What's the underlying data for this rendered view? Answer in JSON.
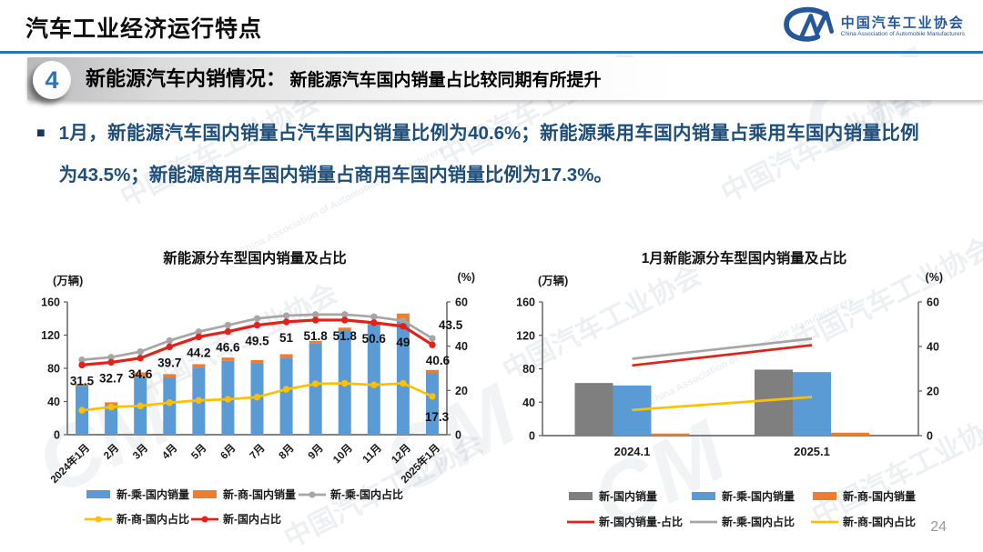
{
  "header": {
    "title": "汽车工业经济运行特点",
    "logo": {
      "mark": "CM",
      "org_cn": "中国汽车工业协会",
      "org_en": "China Association of Automobile Manufacturers"
    }
  },
  "section": {
    "number": "4",
    "heading": "新能源汽车内销情况：",
    "subheading": "新能源汽车国内销量占比较同期有所提升"
  },
  "bullet": {
    "marker": "■",
    "text": "1月，新能源汽车国内销量占汽车国内销量比例为40.6%；新能源乘用车国内销量占乘用车国内销量比例为43.5%；新能源商用车国内销量占商用车国内销量比例为17.3%。"
  },
  "page_number": "24",
  "watermark": {
    "text": "中国汽车工业协会",
    "logo": "CM",
    "text_en": "China Association of Automobile Manufacturers"
  },
  "colors": {
    "accent_blue": "#2E74B5",
    "navy_text": "#1F4E79",
    "logo_blue": "#26579A",
    "axis": "#595959"
  },
  "chart_data": [
    {
      "type": "bar+line combo",
      "title": "新能源分车型国内销量及占比",
      "stacked": true,
      "left_axis": {
        "unit": "(万辆)",
        "ticks": [
          0,
          40,
          80,
          120,
          160
        ],
        "max": 160
      },
      "right_axis": {
        "unit": "(%)",
        "ticks": [
          0,
          20,
          40,
          60
        ],
        "max": 60
      },
      "categories": [
        "2024年1月",
        "2月",
        "3月",
        "4月",
        "5月",
        "6月",
        "7月",
        "8月",
        "9月",
        "10月",
        "11月",
        "12月",
        "2025年1月"
      ],
      "bar_series": [
        {
          "name": "新-乘-国内销量",
          "color": "#5B9BD5",
          "values": [
            59,
            35,
            70,
            69,
            81,
            89,
            86,
            93,
            110,
            126,
            133,
            136,
            74
          ]
        },
        {
          "name": "新-商-国内销量",
          "color": "#ED7D31",
          "values": [
            2,
            4,
            5,
            4,
            4,
            4,
            4,
            4,
            3,
            3,
            3,
            10,
            4
          ]
        }
      ],
      "line_series": [
        {
          "name": "新-乘-国内占比",
          "color": "#A6A6A6",
          "axis": "right",
          "values": [
            33.8,
            35,
            37.5,
            42.5,
            46.5,
            49.5,
            52.5,
            53.8,
            54.3,
            54.3,
            53.3,
            51.5,
            43.5
          ],
          "point_labels": [
            "",
            "",
            "",
            "",
            "",
            "",
            "",
            "",
            "",
            "",
            "",
            "",
            "43.5"
          ],
          "label_pos": "above-right"
        },
        {
          "name": "新-商-国内占比",
          "color": "#FFC000",
          "axis": "right",
          "values": [
            11,
            12.5,
            13,
            14.5,
            15.5,
            16,
            17,
            20.5,
            23,
            23.2,
            22.5,
            23.2,
            17.3
          ],
          "point_labels": [
            "",
            "",
            "",
            "",
            "",
            "",
            "",
            "",
            "",
            "",
            "",
            "",
            "17.3"
          ],
          "label_pos": "below-right"
        },
        {
          "name": "新-国内占比",
          "color": "#E32119",
          "axis": "right",
          "values": [
            31.5,
            32.7,
            34.6,
            39.7,
            44.2,
            46.6,
            49.5,
            51,
            51.8,
            51.8,
            50.6,
            49,
            40.6
          ],
          "point_labels": [
            "31.5",
            "32.7",
            "34.6",
            "39.7",
            "44.2",
            "46.6",
            "49.5",
            "51",
            "51.8",
            "51.8",
            "50.6",
            "49",
            "40.6"
          ],
          "label_pos": "below"
        }
      ],
      "legend_rows": [
        [
          "新-乘-国内销量",
          "新-商-国内销量",
          "新-乘-国内占比"
        ],
        [
          "新-商-国内占比",
          "新-国内占比"
        ]
      ]
    },
    {
      "type": "grouped bar+line combo",
      "title": "1月新能源分车型国内销量及占比",
      "stacked": false,
      "left_axis": {
        "unit": "(万辆)",
        "ticks": [
          0,
          40,
          80,
          120,
          160
        ],
        "max": 160
      },
      "right_axis": {
        "unit": "(%)",
        "ticks": [
          0,
          20,
          40,
          60
        ],
        "max": 60
      },
      "categories": [
        "2024.1",
        "2025.1"
      ],
      "bar_series": [
        {
          "name": "新-国内销量",
          "color": "#7F7F7F",
          "values": [
            63,
            79
          ]
        },
        {
          "name": "新-乘-国内销量",
          "color": "#5B9BD5",
          "values": [
            60,
            76
          ]
        },
        {
          "name": "新-商-国内销量",
          "color": "#ED7D31",
          "values": [
            2.5,
            3.5
          ]
        }
      ],
      "line_series": [
        {
          "name": "新-国内销量-占比",
          "color": "#E32119",
          "axis": "right",
          "values": [
            31.5,
            40.6
          ]
        },
        {
          "name": "新-乘-国内占比",
          "color": "#A6A6A6",
          "axis": "right",
          "values": [
            34.5,
            43.5
          ]
        },
        {
          "name": "新-商-国内占比",
          "color": "#FFC000",
          "axis": "right",
          "values": [
            11.5,
            17.3
          ]
        }
      ],
      "legend_rows": [
        [
          "新-国内销量",
          "新-乘-国内销量",
          "新-商-国内销量"
        ],
        [
          "新-国内销量-占比",
          "新-乘-国内占比",
          "新-商-国内占比"
        ]
      ]
    }
  ]
}
